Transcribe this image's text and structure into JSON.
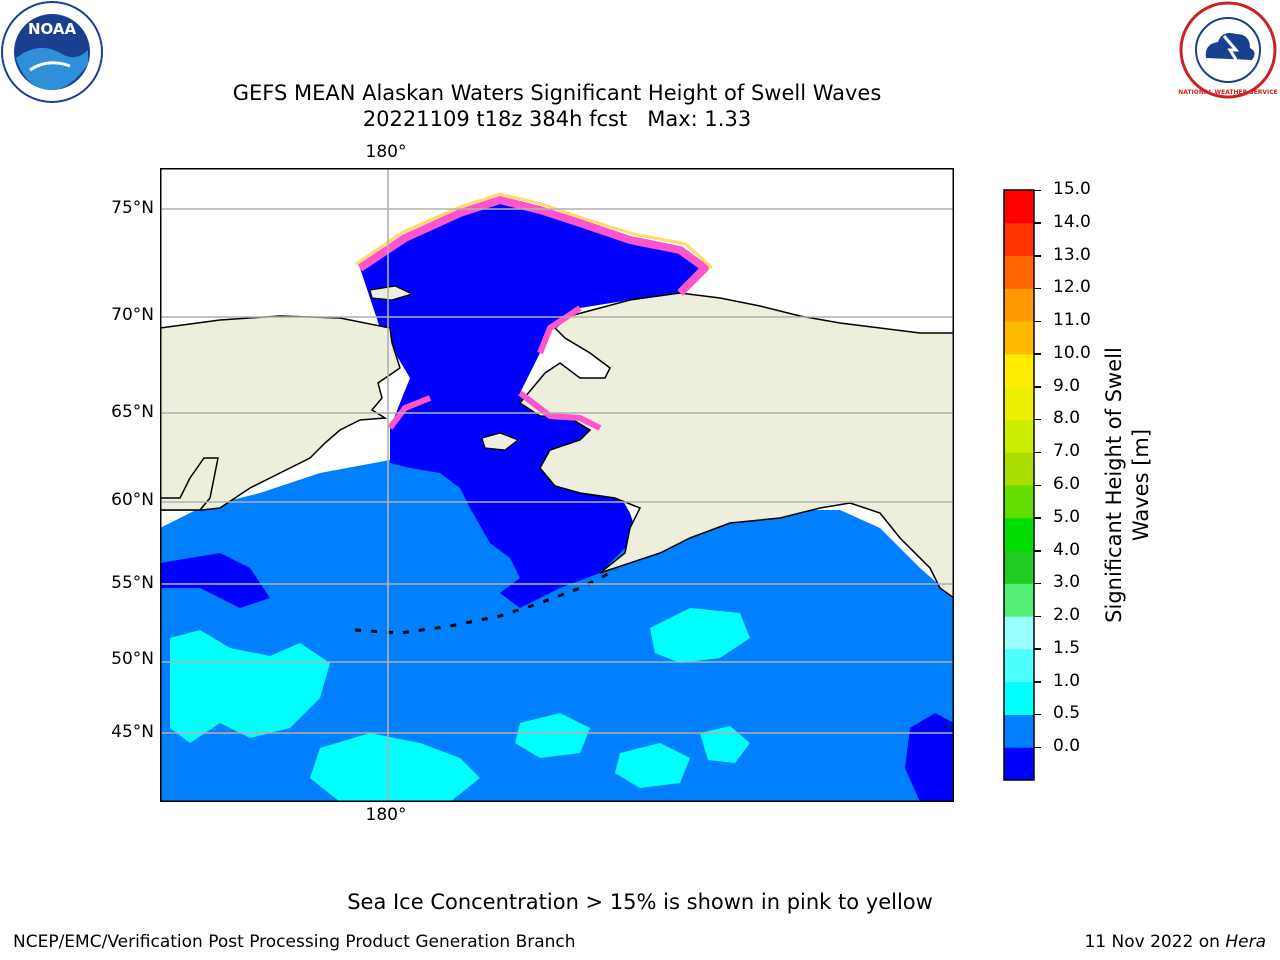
{
  "title_line1": "GEFS MEAN Alaskan Waters Significant Height of Swell Waves",
  "title_run": "20221109 t18z 384h fcst",
  "title_max": "Max: 1.33",
  "lon_label": "180°",
  "lat_labels": [
    "75°N",
    "70°N",
    "65°N",
    "60°N",
    "55°N",
    "50°N",
    "45°N"
  ],
  "colorbar": {
    "label": "Significant Height of Swell Waves [m]",
    "ticks": [
      "15.0",
      "14.0",
      "13.0",
      "12.0",
      "11.0",
      "10.0",
      "9.0",
      "8.0",
      "7.0",
      "6.0",
      "5.0",
      "4.0",
      "3.0",
      "2.0",
      "1.5",
      "1.0",
      "0.5",
      "0.0"
    ],
    "colors": [
      "#0000ff",
      "#0080ff",
      "#00ffff",
      "#4dffff",
      "#99ffff",
      "#55ee77",
      "#22cc22",
      "#00dd00",
      "#66dd00",
      "#aadd00",
      "#ccee00",
      "#eeee00",
      "#ffee00",
      "#ffbb00",
      "#ff9900",
      "#ff6600",
      "#ff3300",
      "#ff0000"
    ]
  },
  "sea_ice_note": "Sea Ice Concentration > 15% is shown in pink to yellow",
  "footer_left": "NCEP/EMC/Verification Post Processing Product Generation Branch",
  "footer_date": "11 Nov 2022 on",
  "footer_machine": "Hera",
  "logos": {
    "noaa_text": "NOAA",
    "nws_text": "NATIONAL WEATHER SERVICE"
  },
  "map_colors": {
    "land": "#eeeedd",
    "ocean_light": "#0080ff",
    "ocean_dark": "#0000ff",
    "swell_cyan": "#00ffff",
    "ice_pink": "#ff55cc",
    "ice_yellow": "#ffdd66",
    "grid": "#b0b0b0"
  }
}
